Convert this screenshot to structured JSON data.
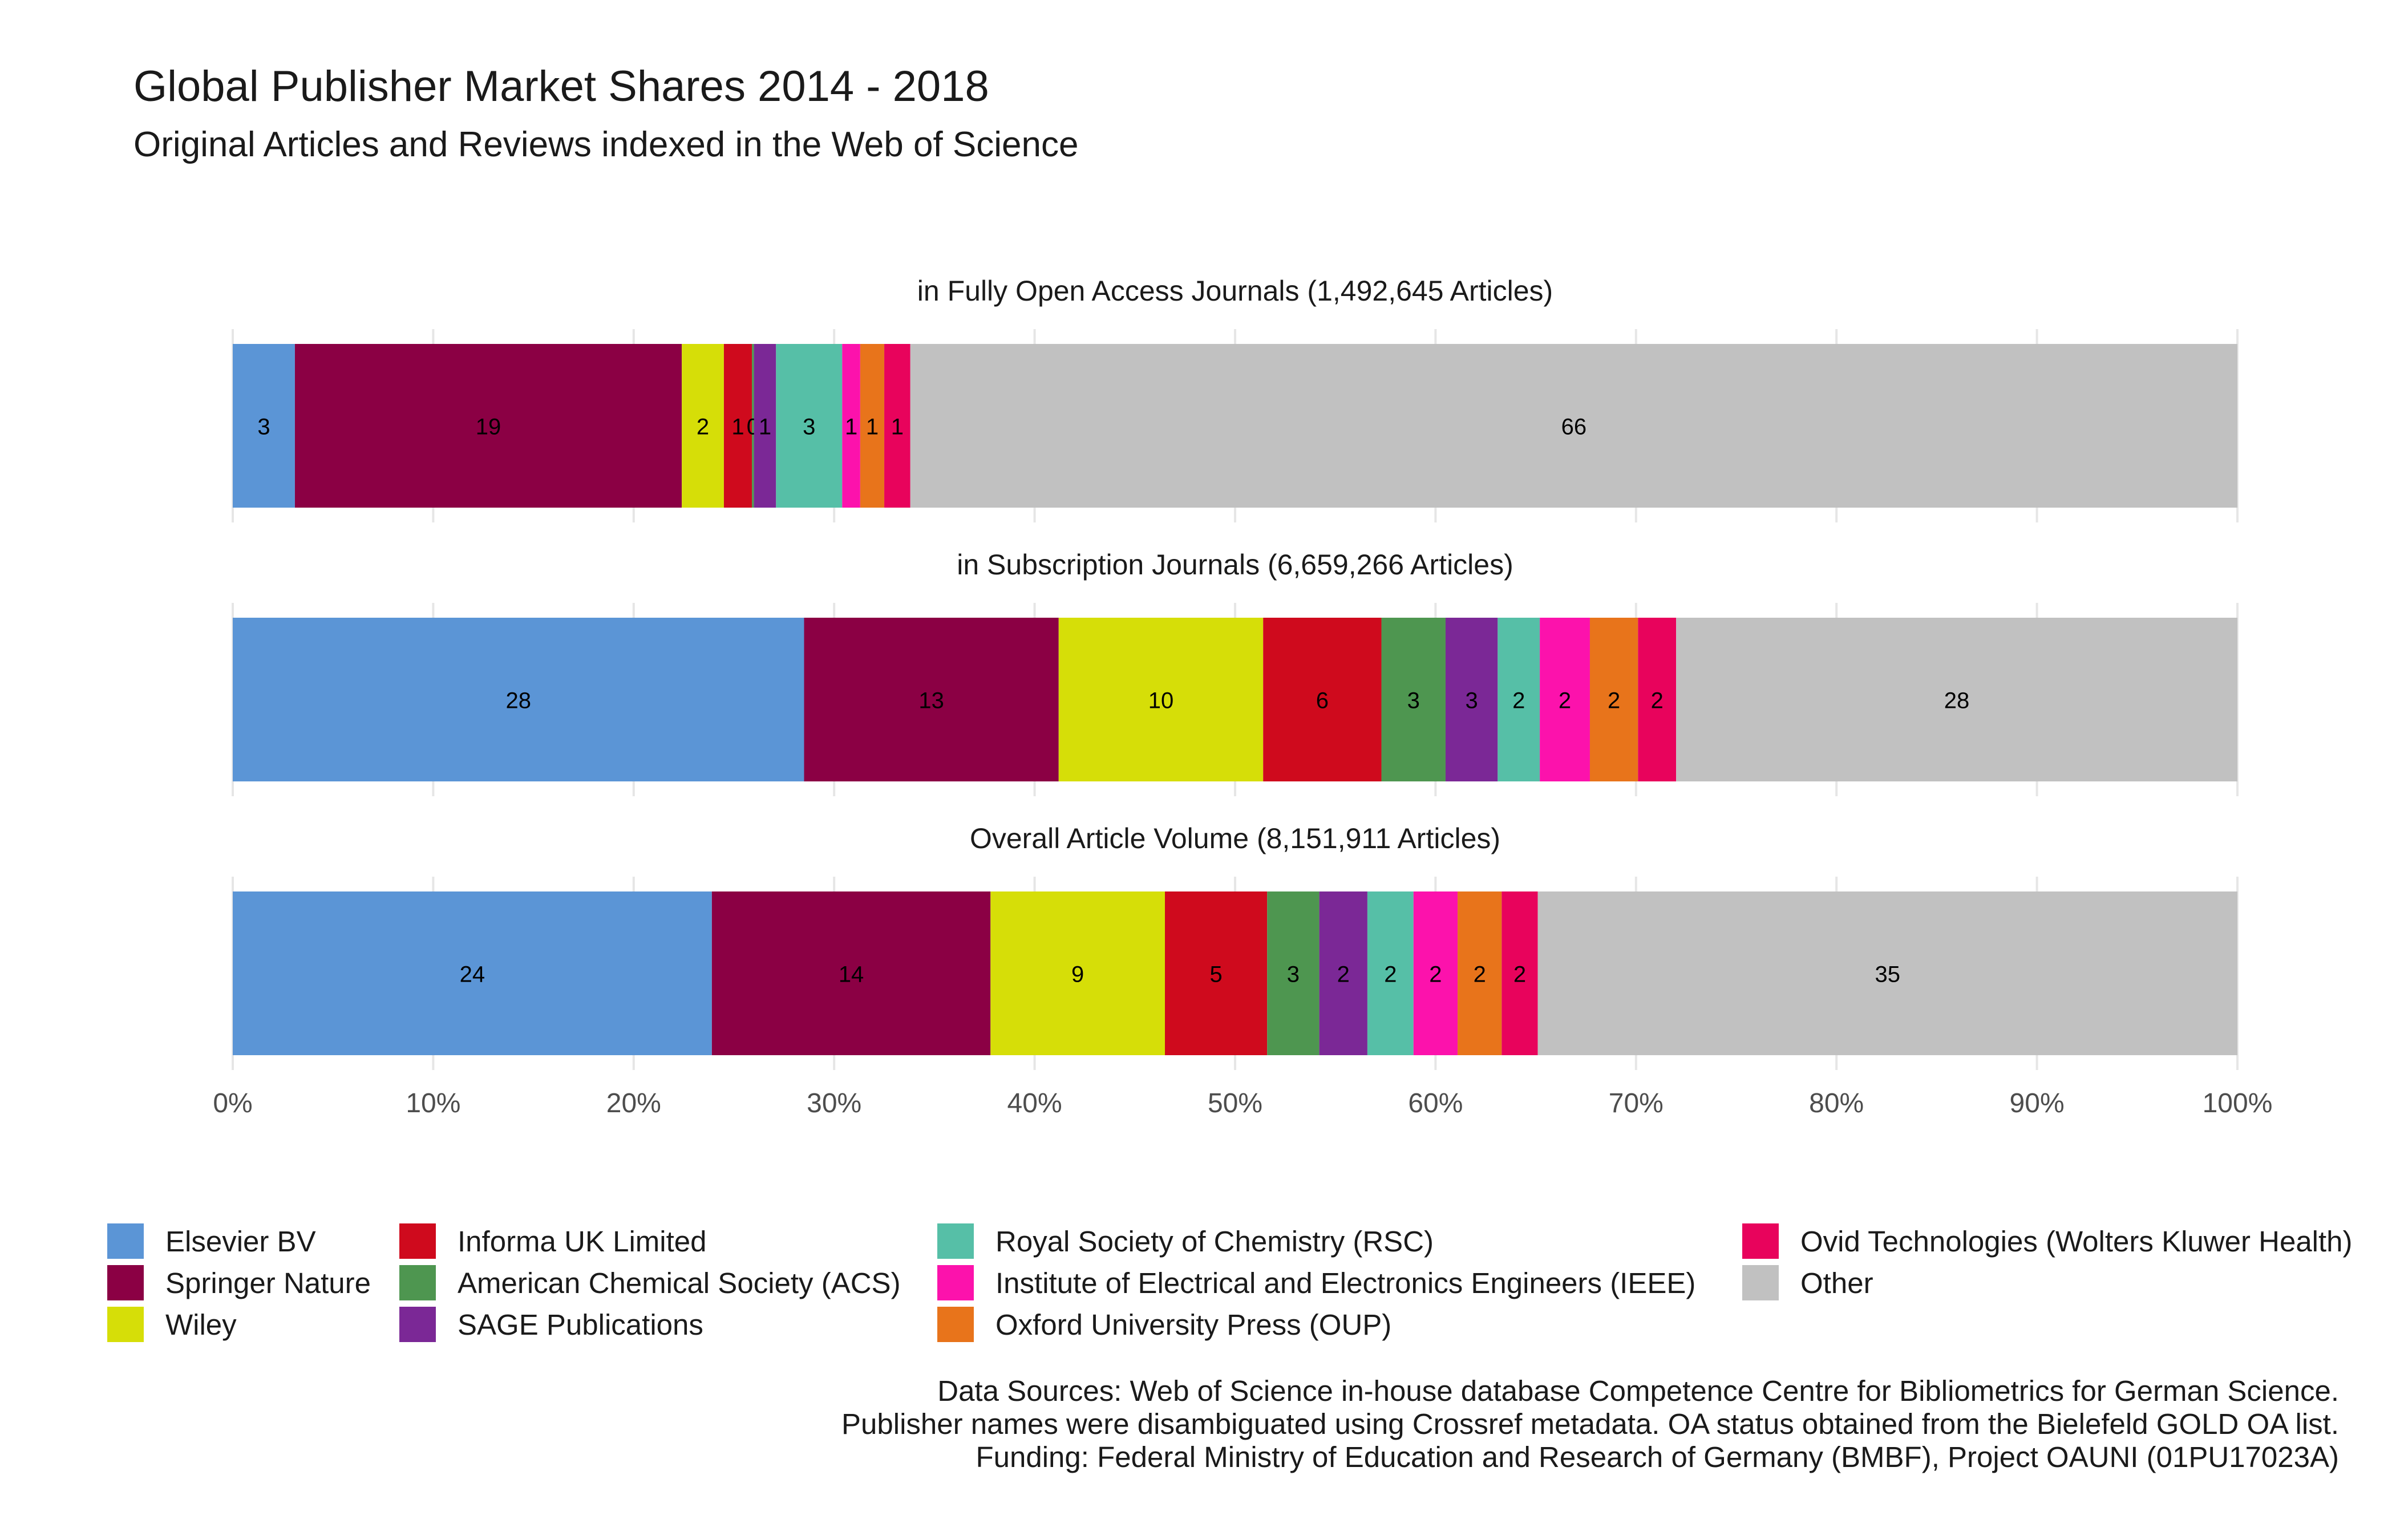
{
  "title": "Global Publisher Market Shares 2014 - 2018",
  "subtitle": "Original Articles and Reviews indexed in the Web of Science",
  "caption": [
    "Data Sources:  Web of Science in-house database Competence Centre for Bibliometrics for German Science.",
    "Publisher names were disambiguated using Crossref metadata. OA status obtained from the Bielefeld GOLD OA list.",
    "Funding: Federal Ministry of Education and Research of Germany (BMBF), Project OAUNI (01PU17023A)"
  ],
  "colors": {
    "Elsevier BV": "#5b95d6",
    "Springer Nature": "#8b0044",
    "Wiley": "#d6de08",
    "Informa UK Limited": "#cf0a1d",
    "American Chemical Society (ACS)": "#4e9650",
    "SAGE Publications": "#7b2896",
    "Royal Society of Chemistry (RSC)": "#56bfa7",
    "Institute of Electrical and Electronics Engineers (IEEE)": "#fc12ac",
    "Oxford University Press (OUP)": "#e8741b",
    "Ovid Technologies (Wolters Kluwer Health)": "#e8035c",
    "Other": "#c1c1c1"
  },
  "chart_data": {
    "type": "bar",
    "orientation": "horizontal",
    "stacked": true,
    "x_axis": {
      "ticks": [
        "0%",
        "10%",
        "20%",
        "30%",
        "40%",
        "50%",
        "60%",
        "70%",
        "80%",
        "90%",
        "100%"
      ],
      "range": [
        0,
        100
      ],
      "unit": "%"
    },
    "grid": true,
    "legend_position": "bottom",
    "facets": [
      {
        "title": "in Fully Open Access Journals (1,492,645 Articles)",
        "segments": [
          {
            "publisher": "Elsevier BV",
            "share": 3.1,
            "label": "3"
          },
          {
            "publisher": "Springer Nature",
            "share": 19.3,
            "label": "19"
          },
          {
            "publisher": "Wiley",
            "share": 2.1,
            "label": "2"
          },
          {
            "publisher": "Informa UK Limited",
            "share": 1.4,
            "label": "1"
          },
          {
            "publisher": "American Chemical Society (ACS)",
            "share": 0.1,
            "label": "0"
          },
          {
            "publisher": "SAGE Publications",
            "share": 1.1,
            "label": "1"
          },
          {
            "publisher": "Royal Society of Chemistry (RSC)",
            "share": 3.3,
            "label": "3"
          },
          {
            "publisher": "Institute of Electrical and Electronics Engineers (IEEE)",
            "share": 0.9,
            "label": "1"
          },
          {
            "publisher": "Oxford University Press (OUP)",
            "share": 1.2,
            "label": "1"
          },
          {
            "publisher": "Ovid Technologies (Wolters Kluwer Health)",
            "share": 1.3,
            "label": "1"
          },
          {
            "publisher": "Other",
            "share": 66.2,
            "label": "66"
          }
        ]
      },
      {
        "title": "in Subscription Journals (6,659,266 Articles)",
        "segments": [
          {
            "publisher": "Elsevier BV",
            "share": 28.5,
            "label": "28"
          },
          {
            "publisher": "Springer Nature",
            "share": 12.7,
            "label": "13"
          },
          {
            "publisher": "Wiley",
            "share": 10.2,
            "label": "10"
          },
          {
            "publisher": "Informa UK Limited",
            "share": 5.9,
            "label": "6"
          },
          {
            "publisher": "American Chemical Society (ACS)",
            "share": 3.2,
            "label": "3"
          },
          {
            "publisher": "SAGE Publications",
            "share": 2.6,
            "label": "3"
          },
          {
            "publisher": "Royal Society of Chemistry (RSC)",
            "share": 2.1,
            "label": "2"
          },
          {
            "publisher": "Institute of Electrical and Electronics Engineers (IEEE)",
            "share": 2.5,
            "label": "2"
          },
          {
            "publisher": "Oxford University Press (OUP)",
            "share": 2.4,
            "label": "2"
          },
          {
            "publisher": "Ovid Technologies (Wolters Kluwer Health)",
            "share": 1.9,
            "label": "2"
          },
          {
            "publisher": "Other",
            "share": 28.0,
            "label": "28"
          }
        ]
      },
      {
        "title": "Overall Article Volume (8,151,911 Articles)",
        "segments": [
          {
            "publisher": "Elsevier BV",
            "share": 23.9,
            "label": "24"
          },
          {
            "publisher": "Springer Nature",
            "share": 13.9,
            "label": "14"
          },
          {
            "publisher": "Wiley",
            "share": 8.7,
            "label": "9"
          },
          {
            "publisher": "Informa UK Limited",
            "share": 5.1,
            "label": "5"
          },
          {
            "publisher": "American Chemical Society (ACS)",
            "share": 2.6,
            "label": "3"
          },
          {
            "publisher": "SAGE Publications",
            "share": 2.4,
            "label": "2"
          },
          {
            "publisher": "Royal Society of Chemistry (RSC)",
            "share": 2.3,
            "label": "2"
          },
          {
            "publisher": "Institute of Electrical and Electronics Engineers (IEEE)",
            "share": 2.2,
            "label": "2"
          },
          {
            "publisher": "Oxford University Press (OUP)",
            "share": 2.2,
            "label": "2"
          },
          {
            "publisher": "Ovid Technologies (Wolters Kluwer Health)",
            "share": 1.8,
            "label": "2"
          },
          {
            "publisher": "Other",
            "share": 34.9,
            "label": "35"
          }
        ]
      }
    ],
    "legend": [
      "Elsevier BV",
      "Springer Nature",
      "Wiley",
      "Informa UK Limited",
      "American Chemical Society (ACS)",
      "SAGE Publications",
      "Royal Society of Chemistry (RSC)",
      "Institute of Electrical and Electronics Engineers (IEEE)",
      "Oxford University Press (OUP)",
      "Ovid Technologies (Wolters Kluwer Health)",
      "Other"
    ]
  }
}
